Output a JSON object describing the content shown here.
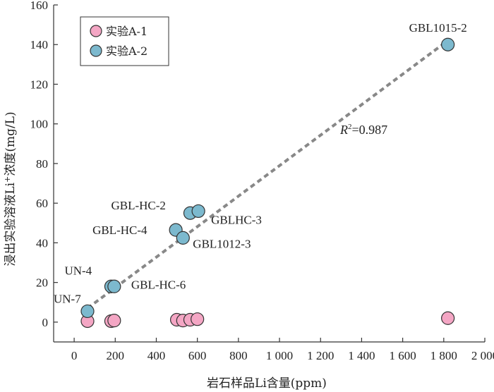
{
  "chart_data": {
    "type": "scatter",
    "xlabel": "岩石样品Li含量(ppm)",
    "ylabel_parts": {
      "before": "浸出实验溶液Li",
      "sup": "+",
      "after": "浓度(mg/L)"
    },
    "xlim": [
      -100,
      2000
    ],
    "ylim": [
      -10,
      160
    ],
    "xticks": [
      0,
      200,
      400,
      600,
      800,
      1000,
      1200,
      1400,
      1600,
      1800,
      2000
    ],
    "xtick_labels": [
      "0",
      "200",
      "400",
      "600",
      "800",
      "1 000",
      "1 200",
      "1 400",
      "1 600",
      "1 800",
      "2 000"
    ],
    "yticks": [
      0,
      20,
      40,
      60,
      80,
      100,
      120,
      140,
      160
    ],
    "ytick_labels": [
      "0",
      "20",
      "40",
      "60",
      "80",
      "100",
      "120",
      "140",
      "160"
    ],
    "grid": false,
    "legend_position": "top-left",
    "series": [
      {
        "name": "实验A-1",
        "color": "#f4a6c4",
        "points": [
          {
            "x": 65,
            "y": 0.5
          },
          {
            "x": 180,
            "y": 0.5
          },
          {
            "x": 195,
            "y": 0.8
          },
          {
            "x": 500,
            "y": 1.2
          },
          {
            "x": 530,
            "y": 0.8
          },
          {
            "x": 565,
            "y": 1.2
          },
          {
            "x": 600,
            "y": 1.5
          },
          {
            "x": 1820,
            "y": 2
          }
        ]
      },
      {
        "name": "实验A-2",
        "color": "#7cb9ce",
        "points": [
          {
            "x": 65,
            "y": 5.5,
            "label": "UN-7"
          },
          {
            "x": 180,
            "y": 18,
            "label": "UN-4"
          },
          {
            "x": 195,
            "y": 18,
            "label": "GBL-HC-6"
          },
          {
            "x": 495,
            "y": 46.5,
            "label": "GBL-HC-4"
          },
          {
            "x": 530,
            "y": 42.5,
            "label": "GBL1012-3"
          },
          {
            "x": 565,
            "y": 55,
            "label": "GBL-HC-2"
          },
          {
            "x": 605,
            "y": 56,
            "label": "GBLHC-3"
          },
          {
            "x": 1820,
            "y": 140,
            "label": "GBL1015-2"
          }
        ]
      }
    ],
    "trendline": {
      "style": "dashed",
      "color": "#888888",
      "from": [
        65,
        7
      ],
      "to": [
        1820,
        142
      ]
    },
    "r2_annotation": {
      "symbol": "R",
      "sup": "2",
      "value": "=0.987"
    }
  }
}
